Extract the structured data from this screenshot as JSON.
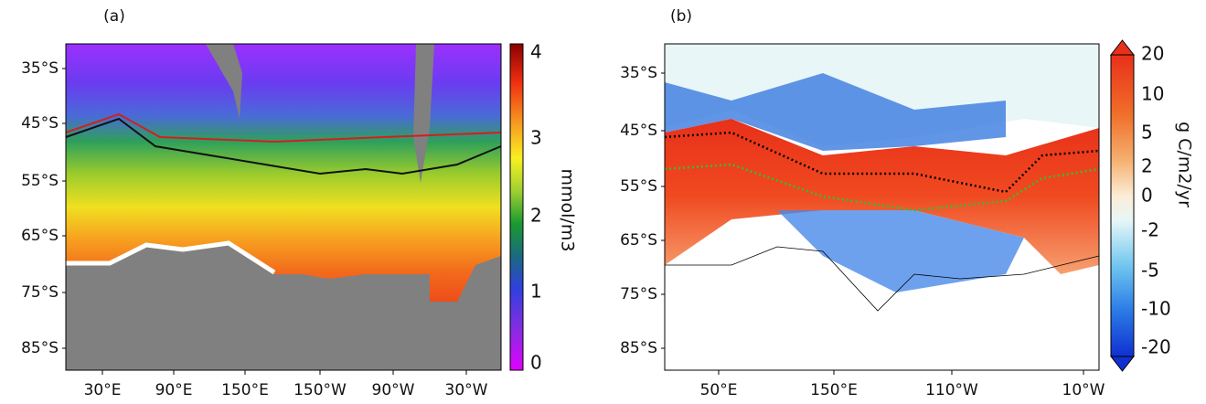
{
  "panels": [
    {
      "label": "(a)",
      "y_ticks": [
        "35°S",
        "45°S",
        "55°S",
        "65°S",
        "75°S",
        "85°S"
      ],
      "x_ticks": [
        "30°E",
        "90°E",
        "150°E",
        "150°W",
        "90°W",
        "30°W"
      ],
      "colorbar": {
        "label": "mmol/m3",
        "ticks": [
          "0",
          "1",
          "2",
          "3",
          "4"
        ]
      }
    },
    {
      "label": "(b)",
      "y_ticks": [
        "35°S",
        "45°S",
        "55°S",
        "65°S",
        "75°S",
        "85°S"
      ],
      "x_ticks": [
        "50°E",
        "150°E",
        "110°W",
        "10°W"
      ],
      "colorbar": {
        "label": "g C/m2/yr",
        "ticks": [
          "20",
          "10",
          "5",
          "2",
          "0",
          "-2",
          "-5",
          "-10",
          "-20"
        ]
      }
    }
  ]
}
